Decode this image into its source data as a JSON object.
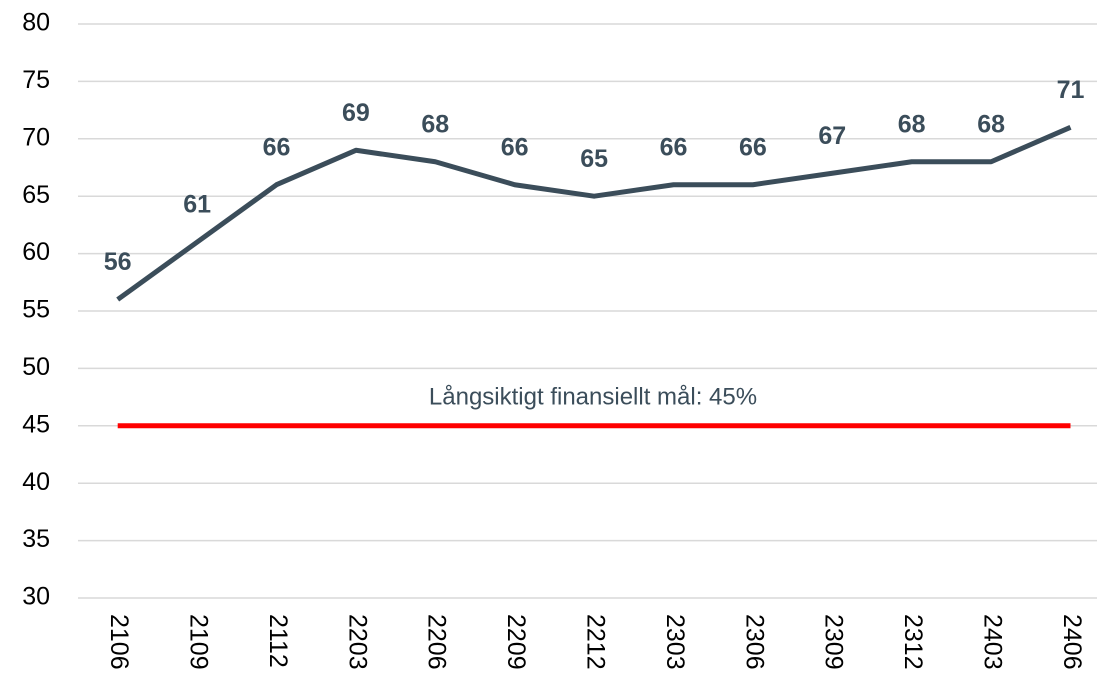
{
  "chart_data": {
    "type": "line",
    "categories": [
      "2106",
      "2109",
      "2112",
      "2203",
      "2206",
      "2209",
      "2212",
      "2303",
      "2306",
      "2309",
      "2312",
      "2403",
      "2406"
    ],
    "series": [
      {
        "color": "#3b4d5a",
        "values": [
          56,
          61,
          66,
          69,
          68,
          66,
          65,
          66,
          66,
          67,
          68,
          68,
          71
        ],
        "data_labels": true
      },
      {
        "color": "#ff0000",
        "values": [
          45,
          45,
          45,
          45,
          45,
          45,
          45,
          45,
          45,
          45,
          45,
          45,
          45
        ],
        "data_labels": false
      }
    ],
    "annotation": "Långsiktigt finansiellt mål: 45%",
    "ylim": [
      30,
      80
    ],
    "yticks": [
      30,
      35,
      40,
      45,
      50,
      55,
      60,
      65,
      70,
      75,
      80
    ],
    "grid": true
  }
}
